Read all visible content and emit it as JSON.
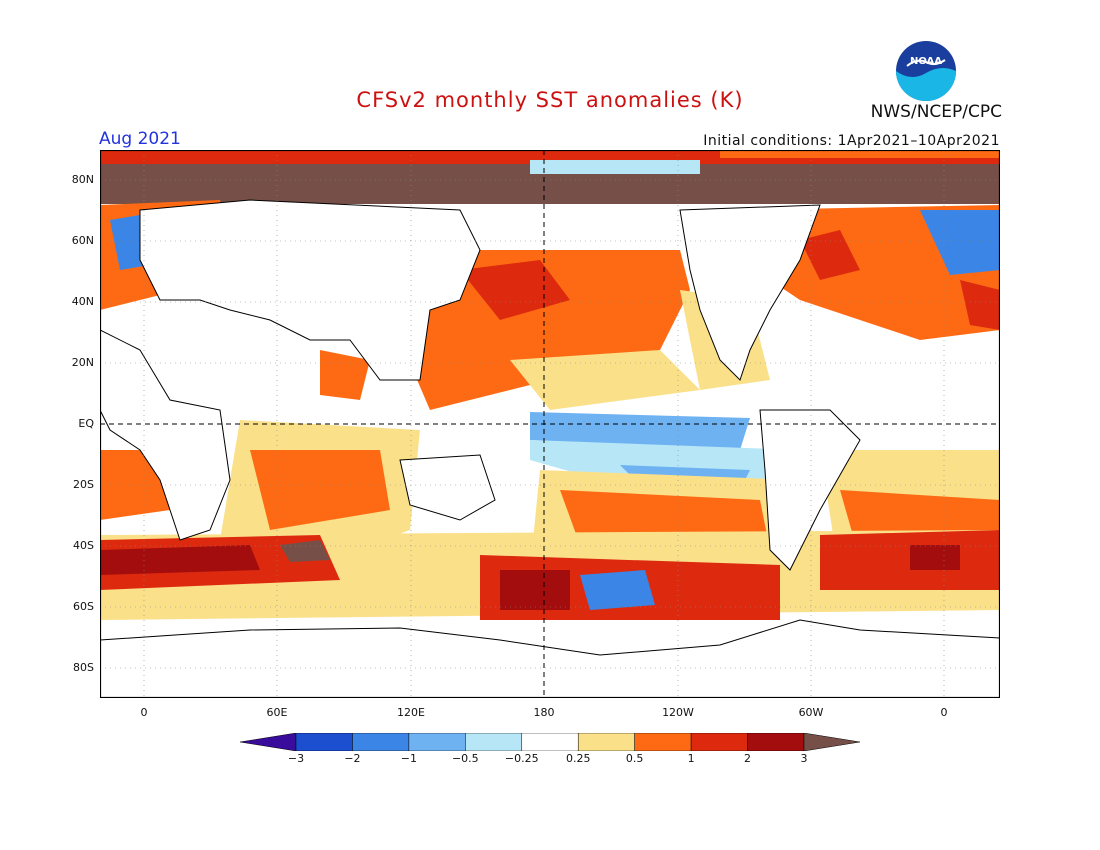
{
  "header": {
    "title": "CFSv2 monthly SST anomalies (K)",
    "org": "NWS/NCEP/CPC",
    "month": "Aug 2021",
    "initial_conditions": "Initial conditions: 1Apr2021–10Apr2021",
    "logo_text": "NOAA"
  },
  "axes": {
    "lat_labels": [
      "80N",
      "60N",
      "40N",
      "20N",
      "EQ",
      "20S",
      "40S",
      "60S",
      "80S"
    ],
    "lon_labels": [
      "0",
      "60E",
      "120E",
      "180",
      "120W",
      "60W",
      "0"
    ]
  },
  "colorbar": {
    "ticks": [
      "−3",
      "−2",
      "−1",
      "−0.5",
      "−0.25",
      "0.25",
      "0.5",
      "1",
      "2",
      "3"
    ],
    "colors": [
      "#3a0c9c",
      "#1c4fcf",
      "#3a85e6",
      "#6eb2f2",
      "#b7e6f7",
      "#ffffff",
      "#fbe08a",
      "#fe6a13",
      "#dd2a0f",
      "#a30d0d",
      "#765048"
    ]
  }
}
